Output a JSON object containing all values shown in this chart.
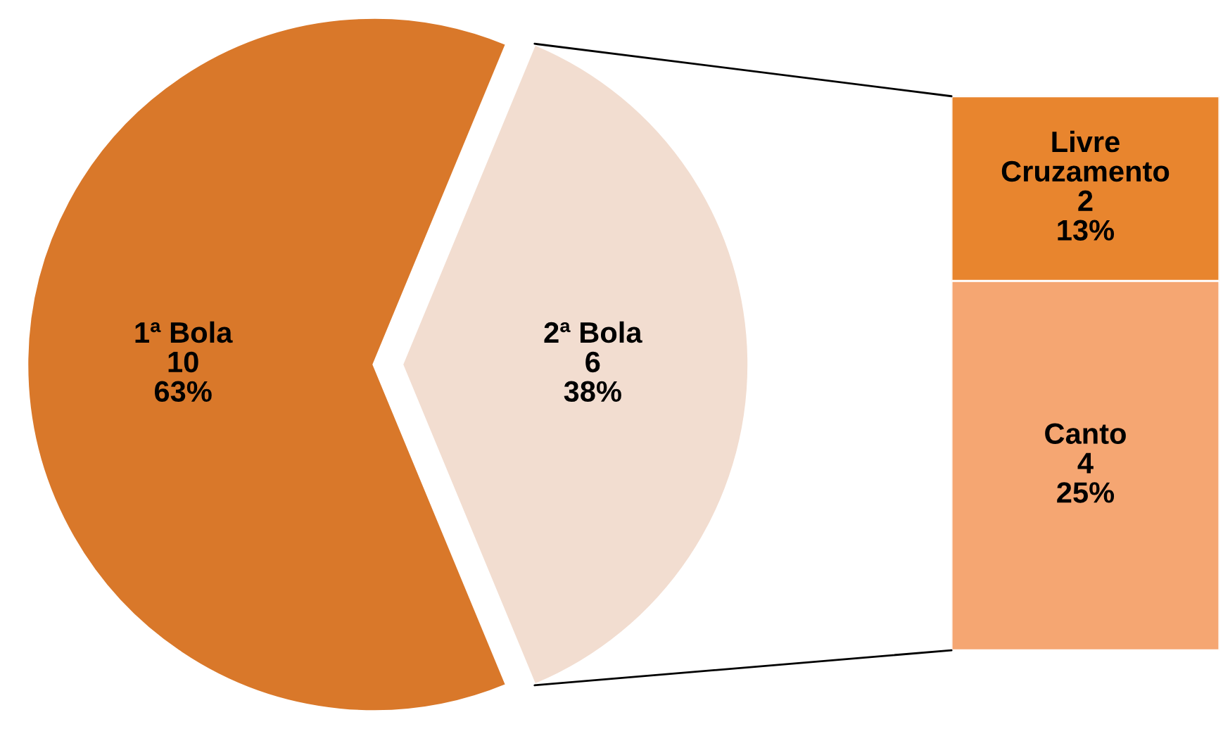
{
  "chart_data": [
    {
      "type": "pie",
      "categories": [
        "1ª Bola",
        "2ª Bola"
      ],
      "values": [
        10,
        6
      ],
      "colors": [
        "#d9782a",
        "#f2ddd0"
      ],
      "value_labels": [
        "10\n63%",
        "6\n38%"
      ]
    },
    {
      "type": "bar",
      "stacked": true,
      "categories": [
        null
      ],
      "series": [
        {
          "name": "Canto",
          "color": "#f5a672",
          "values": [
            4
          ],
          "value_labels": [
            "4\n25%"
          ]
        },
        {
          "name": "Livre\nCruzamento",
          "color": "#e8852e",
          "values": [
            2
          ],
          "value_labels": [
            "2\n13%"
          ]
        }
      ]
    }
  ]
}
